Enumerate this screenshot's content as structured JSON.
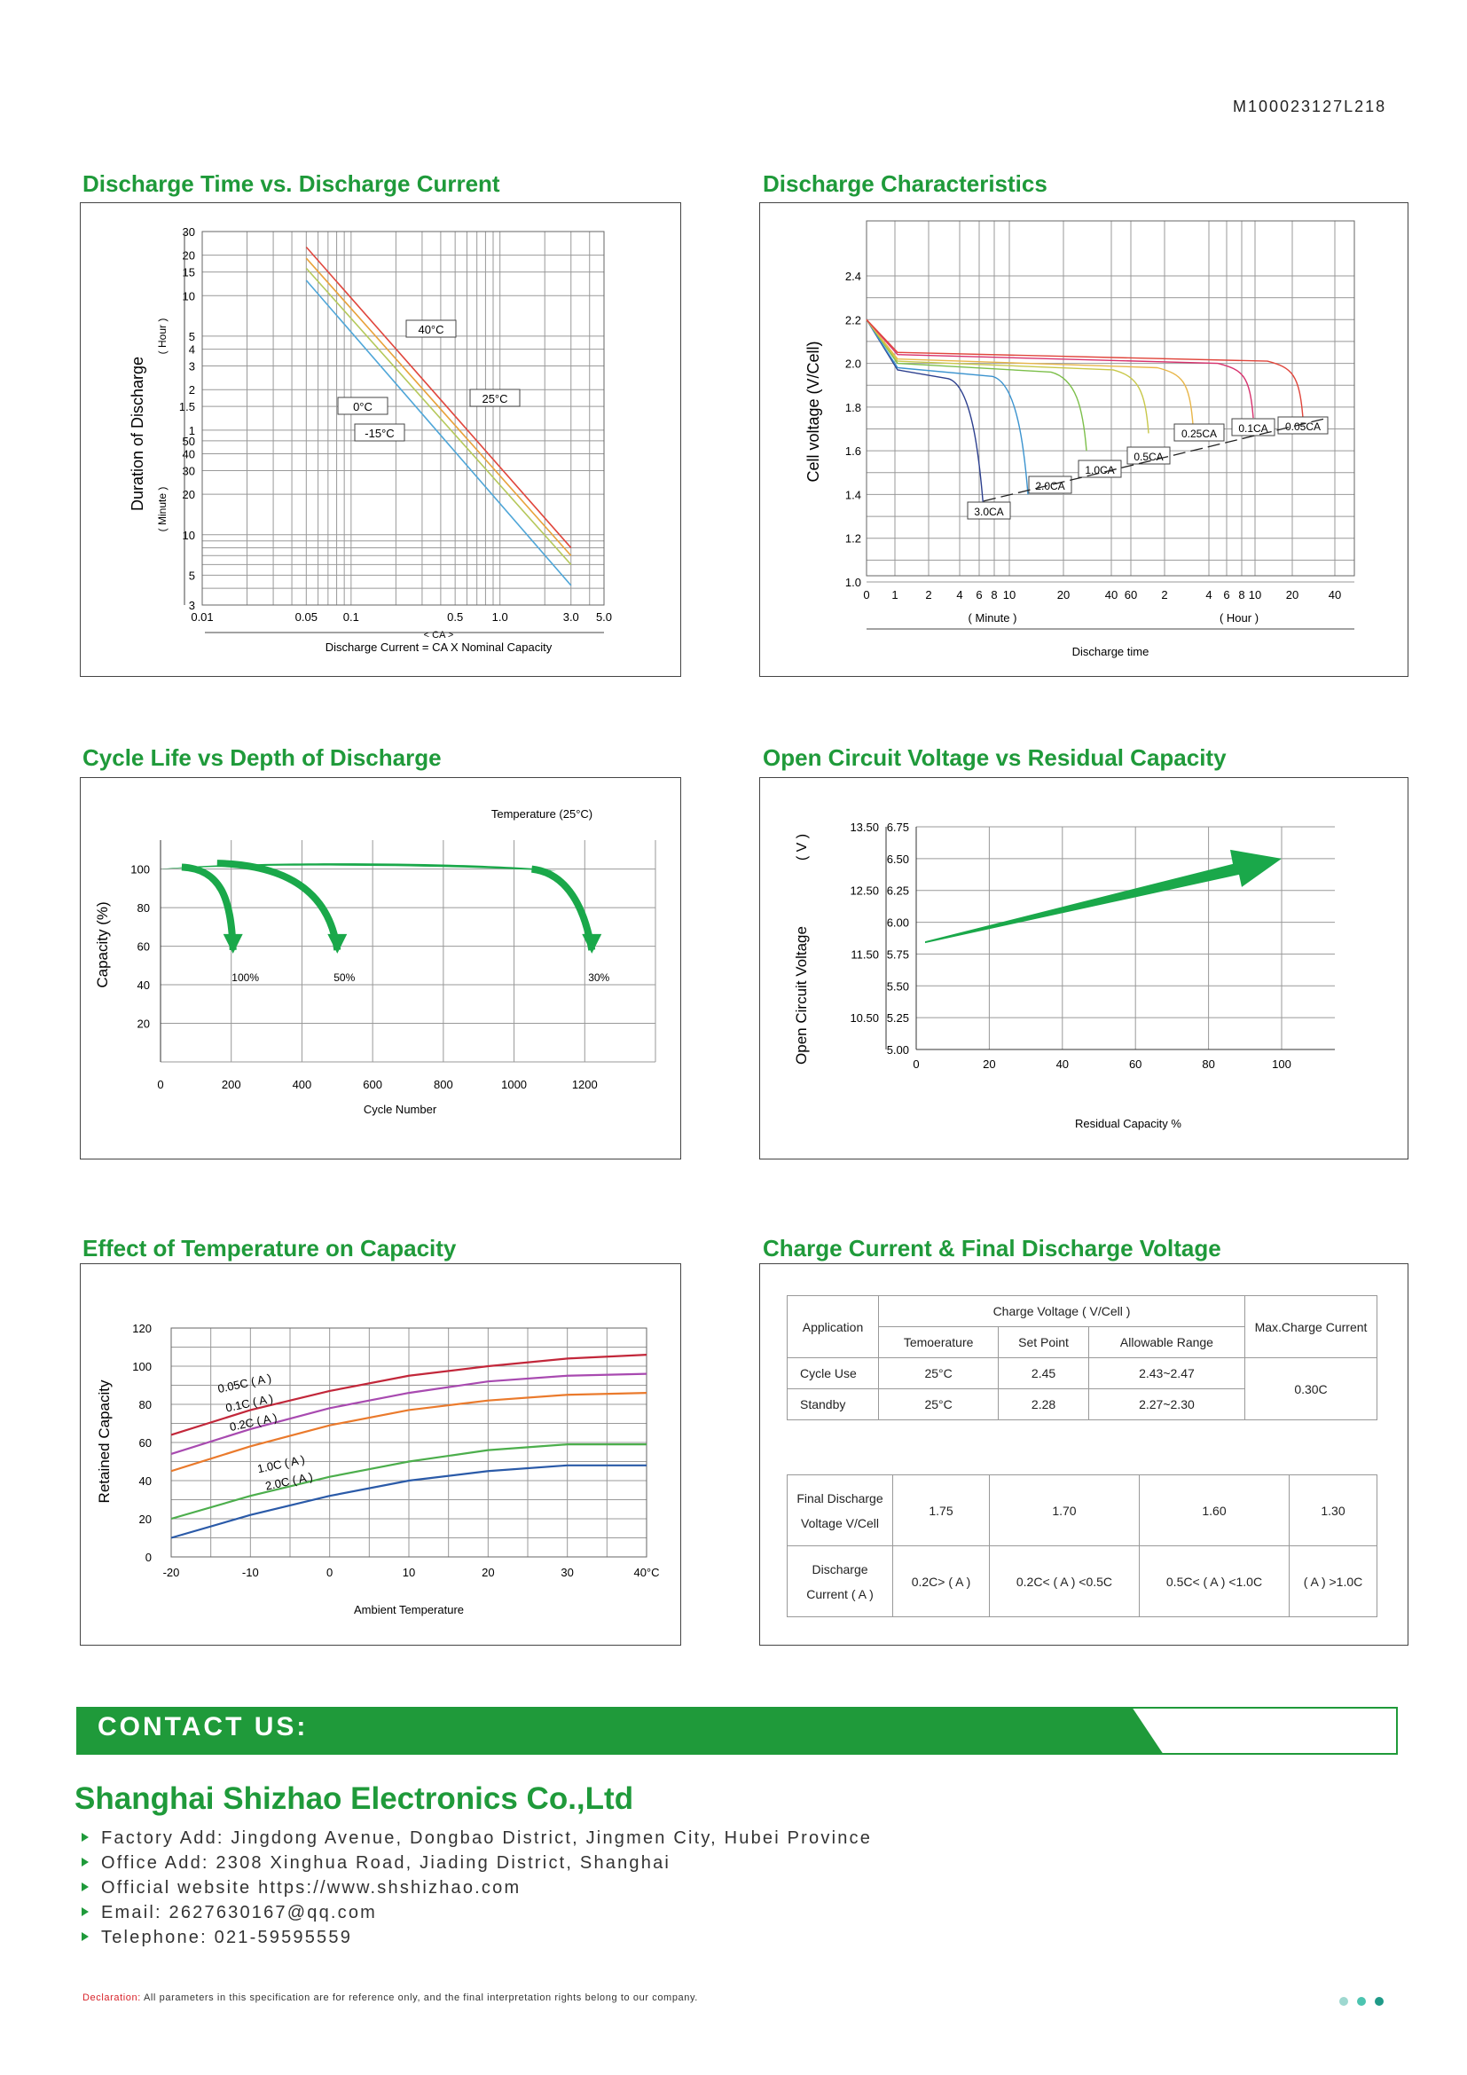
{
  "doc_id": "M100023127L218",
  "sections": {
    "discharge_time": "Discharge Time vs. Discharge Current",
    "discharge_char": "Discharge Characteristics",
    "cycle_life": "Cycle Life vs Depth of Discharge",
    "ocv": "Open Circuit Voltage vs Residual Capacity",
    "temp_effect": "Effect of Temperature on Capacity",
    "charge_table": "Charge Current & Final Discharge Voltage"
  },
  "chart_data": [
    {
      "type": "line",
      "title": "Discharge Time vs. Discharge Current",
      "ylabel": "Duration of Discharge",
      "yunit_hour": "( Hour )",
      "yunit_minute": "( Minute )",
      "xlabel": "Discharge Current = CA X Nominal Capacity",
      "xunit": "< CA >",
      "x_ticks": [
        "0.01",
        "0.05",
        "0.1",
        "0.5",
        "1.0",
        "3.0",
        "5.0"
      ],
      "y_ticks_hour": [
        "30",
        "20",
        "15",
        "10",
        "5",
        "4",
        "3",
        "2",
        "1.5",
        "1"
      ],
      "y_ticks_minute": [
        "50",
        "40",
        "30",
        "20",
        "10",
        "5",
        "3"
      ],
      "scale": "log-log",
      "series": [
        {
          "name": "40°C",
          "color": "#e0463c",
          "x": [
            0.05,
            3.0
          ],
          "y_minutes": [
            1380,
            8
          ]
        },
        {
          "name": "25°C",
          "color": "#e8a23a",
          "x": [
            0.05,
            3.0
          ],
          "y_minutes": [
            1140,
            7
          ]
        },
        {
          "name": "0°C",
          "color": "#b5c85a",
          "x": [
            0.05,
            3.0
          ],
          "y_minutes": [
            960,
            6
          ]
        },
        {
          "name": "-15°C",
          "color": "#4fa6d8",
          "x": [
            0.05,
            3.0
          ],
          "y_minutes": [
            780,
            4.2
          ]
        }
      ]
    },
    {
      "type": "line",
      "title": "Discharge Characteristics",
      "ylabel": "Cell voltage (V/Cell)",
      "xlabel": "Discharge time",
      "x_unit_minute": "( Minute )",
      "x_unit_hour": "( Hour )",
      "y_ticks": [
        "2.4",
        "2.2",
        "2.0",
        "1.8",
        "1.6",
        "1.4",
        "1.2",
        "1.0"
      ],
      "x_ticks": [
        "0",
        "1",
        "2",
        "4",
        "6",
        "8",
        "10",
        "20",
        "40",
        "60",
        "2",
        "4",
        "6",
        "8",
        "10",
        "20",
        "40"
      ],
      "ylim": [
        1.0,
        2.4
      ],
      "series": [
        {
          "name": "3.0CA",
          "color": "#2c3f8e",
          "end_voltage": 1.33
        },
        {
          "name": "2.0CA",
          "color": "#3b93cf",
          "end_voltage": 1.4
        },
        {
          "name": "1.0CA",
          "color": "#7cbf4a",
          "end_voltage": 1.6
        },
        {
          "name": "0.5CA",
          "color": "#c8c84a",
          "end_voltage": 1.68
        },
        {
          "name": "0.25CA",
          "color": "#e8b64a",
          "end_voltage": 1.72
        },
        {
          "name": "0.1CA",
          "color": "#d8326e",
          "end_voltage": 1.75
        },
        {
          "name": "0.05CA",
          "color": "#e0463c",
          "end_voltage": 1.75
        }
      ]
    },
    {
      "type": "line",
      "title": "Cycle Life vs Depth of Discharge",
      "ylabel": "Capacity  (%)",
      "xlabel": "Cycle Number",
      "note": "Temperature  (25°C)",
      "x_ticks": [
        "0",
        "200",
        "400",
        "600",
        "800",
        "1000",
        "1200"
      ],
      "y_ticks": [
        "100",
        "80",
        "60",
        "40",
        "20"
      ],
      "series": [
        {
          "name": "100%",
          "x": [
            0,
            100,
            200
          ],
          "y": [
            100,
            103,
            50
          ]
        },
        {
          "name": "50%",
          "x": [
            0,
            200,
            500
          ],
          "y": [
            100,
            104,
            50
          ]
        },
        {
          "name": "30%",
          "x": [
            0,
            1100,
            1200
          ],
          "y": [
            100,
            100,
            50
          ]
        }
      ]
    },
    {
      "type": "line",
      "title": "Open Circuit Voltage vs Residual Capacity",
      "ylabel": "Open Circuit Voltage",
      "yunit": "( V )",
      "xlabel": "Residual Capacity %",
      "x_ticks": [
        "0",
        "20",
        "40",
        "60",
        "80",
        "100"
      ],
      "y_ticks_12v": [
        "13.50",
        "12.50",
        "11.50",
        "10.50"
      ],
      "y_ticks_cell": [
        "6.75",
        "6.50",
        "6.25",
        "6.00",
        "5.75",
        "5.50",
        "5.25",
        "5.00"
      ],
      "series": [
        {
          "name": "OCV",
          "x": [
            0,
            100
          ],
          "y": [
            5.85,
            6.5
          ]
        }
      ]
    },
    {
      "type": "line",
      "title": "Effect of Temperature on Capacity",
      "ylabel": "Retained Capacity",
      "xlabel": "Ambient Temperature",
      "x_ticks": [
        "-20",
        "-10",
        "0",
        "10",
        "20",
        "30",
        "40°C"
      ],
      "y_ticks": [
        "120",
        "100",
        "80",
        "60",
        "40",
        "20",
        "0"
      ],
      "xlim": [
        -20,
        40
      ],
      "ylim": [
        0,
        120
      ],
      "series": [
        {
          "name": "0.05C ( A )",
          "color": "#c2273a",
          "x": [
            -20,
            -10,
            0,
            10,
            20,
            30,
            40
          ],
          "y": [
            64,
            77,
            87,
            95,
            100,
            104,
            106
          ]
        },
        {
          "name": "0.1C ( A )",
          "color": "#a84ab0",
          "x": [
            -20,
            -10,
            0,
            10,
            20,
            30,
            40
          ],
          "y": [
            54,
            67,
            78,
            86,
            92,
            95,
            96
          ]
        },
        {
          "name": "0.2C ( A )",
          "color": "#ea7a2c",
          "x": [
            -20,
            -10,
            0,
            10,
            20,
            30,
            40
          ],
          "y": [
            45,
            58,
            69,
            77,
            82,
            85,
            86
          ]
        },
        {
          "name": "1.0C ( A )",
          "color": "#4cae4c",
          "x": [
            -20,
            -10,
            0,
            10,
            20,
            30,
            40
          ],
          "y": [
            20,
            32,
            42,
            50,
            56,
            59,
            59
          ]
        },
        {
          "name": "2.0C ( A )",
          "color": "#2a5aa8",
          "x": [
            -20,
            -10,
            0,
            10,
            20,
            30,
            40
          ],
          "y": [
            10,
            22,
            32,
            40,
            45,
            48,
            48
          ]
        }
      ]
    }
  ],
  "charge_table": {
    "application": "Application",
    "charge_voltage": "Charge Voltage ( V/Cell )",
    "temperature": "Temoerature",
    "set_point": "Set Point",
    "allowable": "Allowable Range",
    "max_current": "Max.Charge Current",
    "rows": [
      {
        "app": "Cycle Use",
        "temp": "25°C",
        "set": "2.45",
        "range": "2.43~2.47"
      },
      {
        "app": "Standby",
        "temp": "25°C",
        "set": "2.28",
        "range": "2.27~2.30"
      }
    ],
    "max_value": "0.30C"
  },
  "final_table": {
    "label_v": "Final Discharge\nVoltage V/Cell",
    "label_c": "Discharge\nCurrent ( A )",
    "voltages": [
      "1.75",
      "1.70",
      "1.60",
      "1.30"
    ],
    "currents": [
      "0.2C> ( A )",
      "0.2C< ( A ) <0.5C",
      "0.5C< ( A ) <1.0C",
      "( A ) >1.0C"
    ]
  },
  "contact": {
    "heading": "CONTACT US:",
    "company": "Shanghai Shizhao Electronics Co.,Ltd",
    "lines": [
      "Factory Add:   Jingdong Avenue, Dongbao District, Jingmen City, Hubei Province",
      "Office Add:   2308 Xinghua Road, Jiading District, Shanghai",
      "Official website https://www.shshizhao.com",
      "Email:   2627630167@qq.com",
      "Telephone:   021-59595559"
    ]
  },
  "declaration": {
    "label": "Declaration:",
    "text": " All parameters in this specification are for reference only, and the final interpretation rights belong to our company."
  },
  "colors": {
    "brand_green": "#1f9a3a",
    "dot1": "#9ed8d0",
    "dot2": "#4cc4b0",
    "dot3": "#1f9a88"
  }
}
